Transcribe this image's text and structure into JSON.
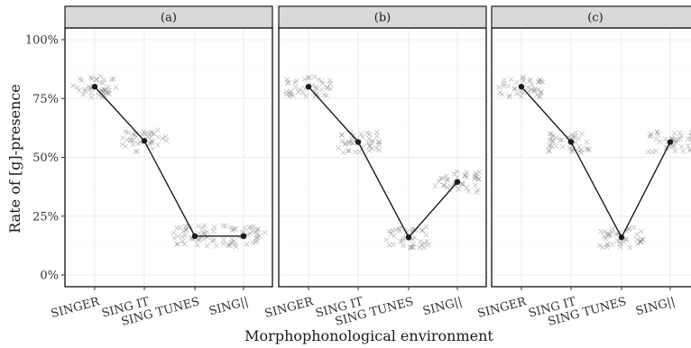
{
  "chart_data": {
    "type": "scatter",
    "ylabel": "Rate of [g]-presence",
    "xlabel": "Morphophonological environment",
    "categories": [
      "SINGER",
      "SING IT",
      "SING TUNES",
      "SING||"
    ],
    "y_ticks": [
      "0%",
      "25%",
      "50%",
      "75%",
      "100%"
    ],
    "ylim": [
      0,
      1.05
    ],
    "grid": true,
    "panels": [
      {
        "label": "(a)",
        "means": [
          0.8,
          0.57,
          0.165,
          0.165
        ]
      },
      {
        "label": "(b)",
        "means": [
          0.8,
          0.565,
          0.16,
          0.395
        ]
      },
      {
        "label": "(c)",
        "means": [
          0.8,
          0.565,
          0.16,
          0.565
        ]
      }
    ],
    "point_color": "#555555",
    "line_color": "#1a1a1a"
  }
}
